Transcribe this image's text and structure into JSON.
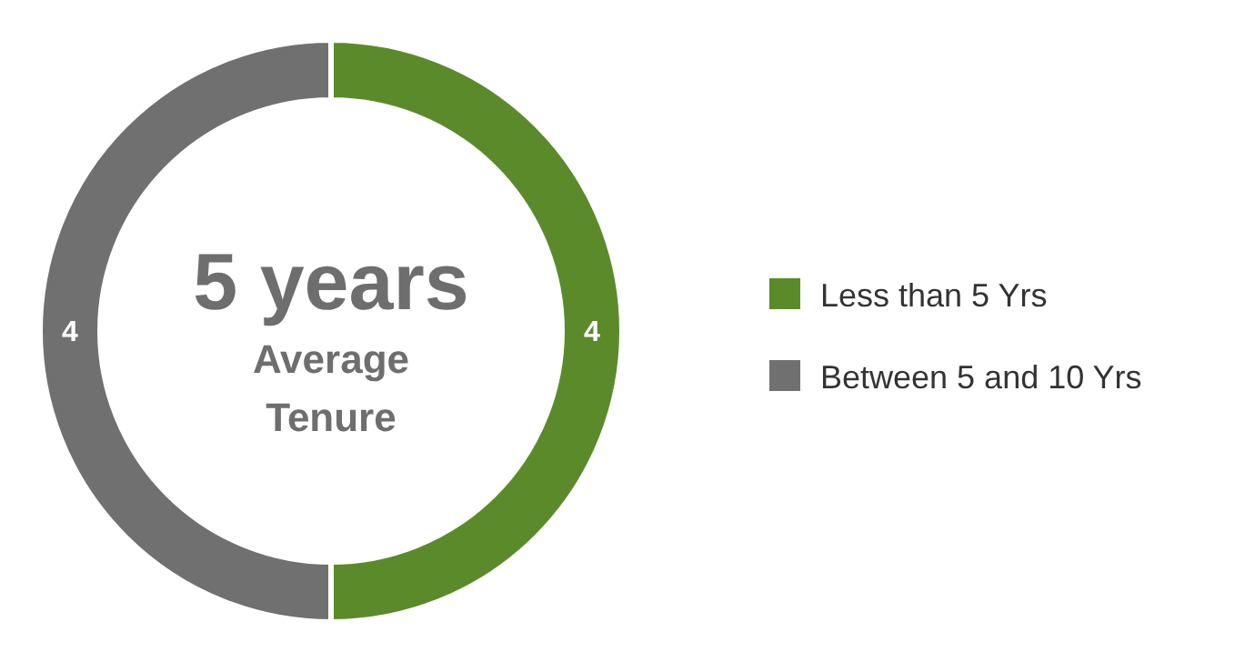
{
  "chart_data": {
    "type": "donut",
    "categories": [
      "Less than 5 Yrs",
      "Between 5 and 10 Yrs"
    ],
    "values": [
      4,
      4
    ],
    "colors": [
      "#5b8a2b",
      "#707070"
    ],
    "data_labels": true,
    "legend": "right",
    "annotations": [
      "5 years",
      "Average",
      "Tenure"
    ]
  }
}
